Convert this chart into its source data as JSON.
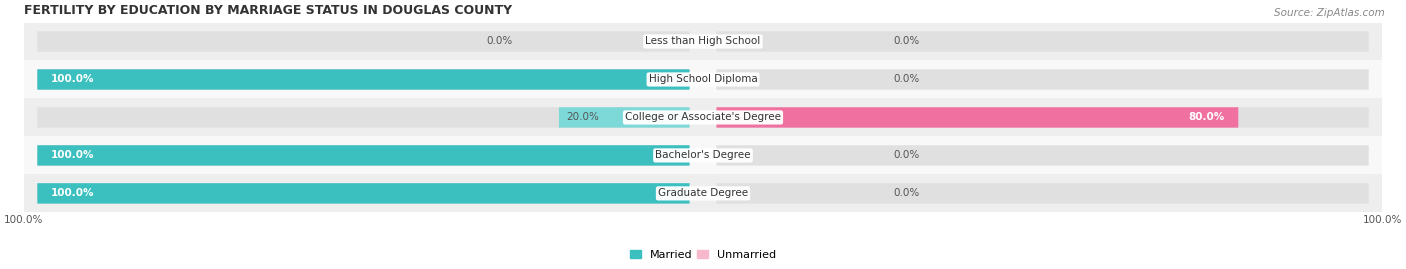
{
  "title": "FERTILITY BY EDUCATION BY MARRIAGE STATUS IN DOUGLAS COUNTY",
  "source": "Source: ZipAtlas.com",
  "categories": [
    "Less than High School",
    "High School Diploma",
    "College or Associate's Degree",
    "Bachelor's Degree",
    "Graduate Degree"
  ],
  "married_values": [
    0.0,
    100.0,
    20.0,
    100.0,
    100.0
  ],
  "unmarried_values": [
    0.0,
    0.0,
    80.0,
    0.0,
    0.0
  ],
  "married_color": "#3BBFBF",
  "unmarried_color": "#F070A0",
  "married_color_light": "#7DD8D8",
  "unmarried_color_light": "#F8B8CC",
  "bar_bg_color": "#E0E0E0",
  "bar_height": 0.52,
  "figsize": [
    14.06,
    2.69
  ],
  "dpi": 100,
  "title_fontsize": 9,
  "label_fontsize": 7.5,
  "tick_fontsize": 7.5,
  "source_fontsize": 7.5,
  "legend_fontsize": 8,
  "row_bg_colors": [
    "#EEEEEE",
    "#F8F8F8",
    "#EEEEEE",
    "#F8F8F8",
    "#EEEEEE"
  ]
}
